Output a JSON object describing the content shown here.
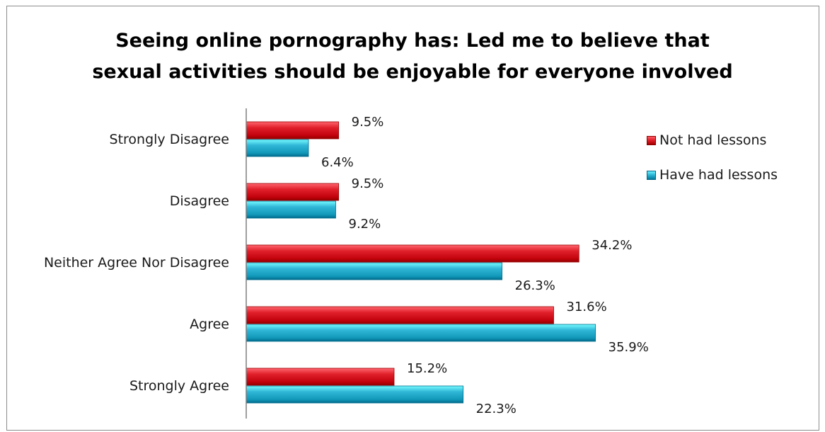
{
  "chart_data": {
    "type": "bar",
    "orientation": "horizontal",
    "title_lines": [
      "Seeing online pornography has: Led me to believe that",
      "sexual activities should be enjoyable for everyone involved"
    ],
    "categories": [
      "Strongly Disagree",
      "Disagree",
      "Neither Agree Nor Disagree",
      "Agree",
      "Strongly Agree"
    ],
    "series": [
      {
        "name": "Not had lessons",
        "values": [
          9.5,
          9.5,
          34.2,
          31.6,
          15.2
        ],
        "labels": [
          "9.5%",
          "9.5%",
          "34.2%",
          "31.6%",
          "15.2%"
        ],
        "color": "#e0202a"
      },
      {
        "name": "Have had lessons",
        "values": [
          6.4,
          9.2,
          26.3,
          35.9,
          22.3
        ],
        "labels": [
          "6.4%",
          "9.2%",
          "26.3%",
          "35.9%",
          "22.3%"
        ],
        "color": "#2fb5d6"
      }
    ],
    "xlim": [
      0,
      40
    ],
    "unit": "%",
    "grid": false,
    "legend_position": "right"
  }
}
